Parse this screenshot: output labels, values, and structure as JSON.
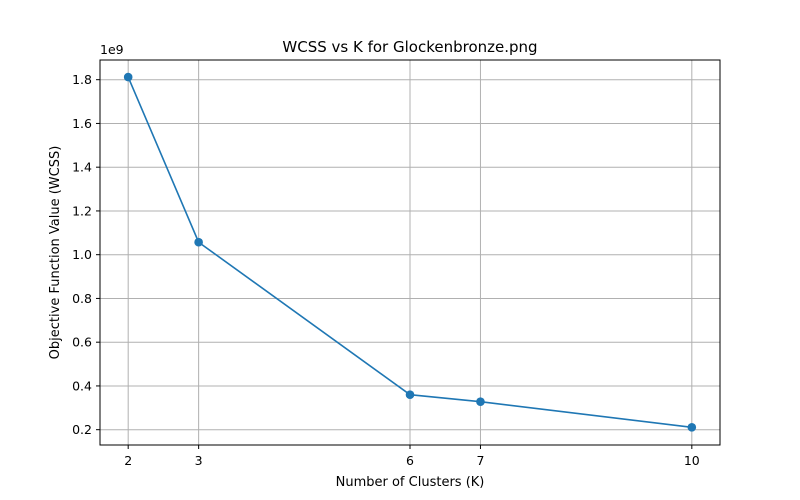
{
  "chart_data": {
    "type": "line",
    "title": "WCSS vs K for Glockenbronze.png",
    "xlabel": "Number of Clusters (K)",
    "ylabel": "Objective Function Value (WCSS)",
    "y_offset_label": "1e9",
    "x": [
      2,
      3,
      6,
      7,
      10
    ],
    "series": [
      {
        "values": [
          1.812,
          1.057,
          0.36,
          0.328,
          0.211
        ],
        "color": "#1f77b4",
        "marker": "circle"
      }
    ],
    "xticks": [
      2,
      3,
      6,
      7,
      10
    ],
    "yticks": [
      0.2,
      0.4,
      0.6,
      0.8,
      1.0,
      1.2,
      1.4,
      1.6,
      1.8
    ],
    "ytick_labels": [
      "0.2",
      "0.4",
      "0.6",
      "0.8",
      "1.0",
      "1.2",
      "1.4",
      "1.6",
      "1.8"
    ],
    "xlim": [
      1.6,
      10.4
    ],
    "ylim": [
      0.13,
      1.89
    ],
    "grid": true
  }
}
